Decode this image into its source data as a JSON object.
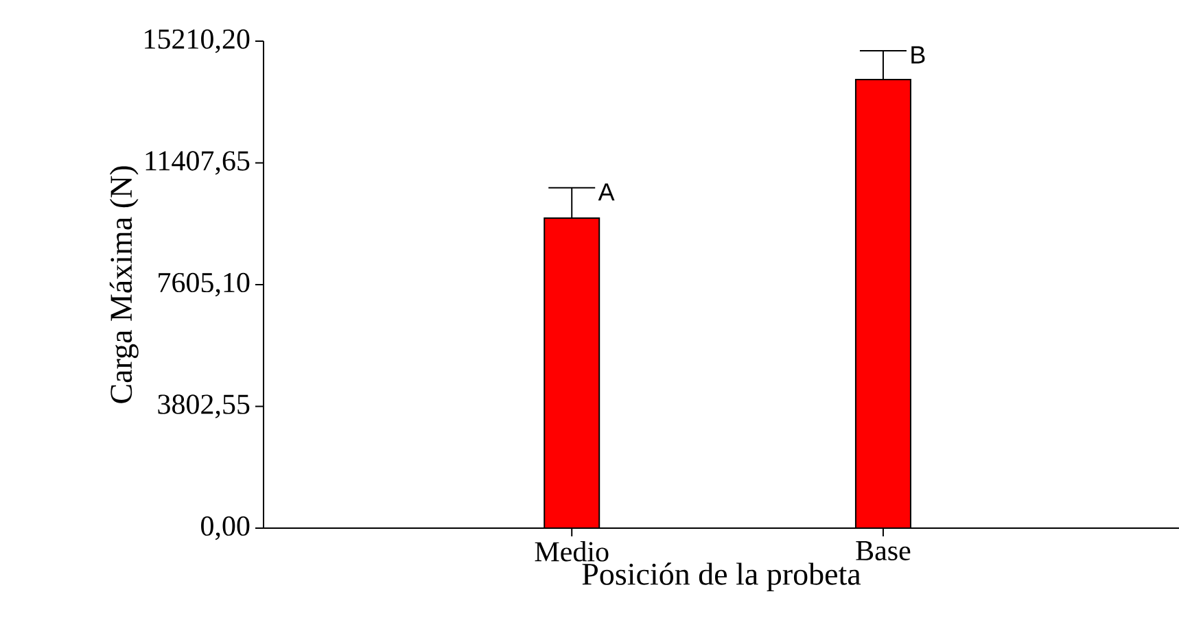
{
  "chart_data": {
    "type": "bar",
    "xlabel": "Posición de la probeta",
    "ylabel": "Carga Máxima (N)",
    "categories": [
      "Medio",
      "Base"
    ],
    "values": [
      9680,
      14010
    ],
    "errors": [
      [
        9680,
        10630
      ],
      [
        14010,
        14910
      ]
    ],
    "color": "#ff0000",
    "ylim": [
      0,
      15210.2
    ],
    "yticks": [
      {
        "value": 0,
        "label": "0,00"
      },
      {
        "value": 3802.55,
        "label": "3802,55"
      },
      {
        "value": 7605.1,
        "label": "7605,10"
      },
      {
        "value": 11407.65,
        "label": "11407,65"
      },
      {
        "value": 15210.2,
        "label": "15210,20"
      }
    ],
    "annotations": [
      {
        "text": "A",
        "x": "Medio",
        "y": 10630
      },
      {
        "text": "B",
        "x": "Base",
        "y": 14910
      }
    ]
  }
}
